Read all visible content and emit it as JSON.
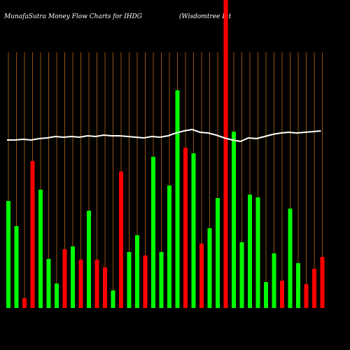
{
  "chart_data": {
    "type": "bar",
    "title": "MunafaSutra  Money Flow  Charts for IHDG",
    "subtitle": "(Wisdomtree  Int",
    "categories": [
      null,
      null,
      null,
      null,
      null,
      null,
      null,
      null,
      null,
      null,
      null,
      null,
      null,
      null,
      null,
      null,
      null,
      null,
      null,
      null,
      null,
      null,
      null,
      null,
      null,
      null,
      null,
      null,
      null,
      null,
      null,
      null,
      null,
      null,
      null,
      null,
      null,
      null,
      null,
      null
    ],
    "ylim": [
      0,
      440
    ],
    "series": [
      {
        "name": "money flow",
        "type": "bar",
        "colors": [
          "#00ff00",
          "#00ff00",
          "#ff0000",
          "#ff0000",
          "#00ff00",
          "#00ff00",
          "#00ff00",
          "#ff0000",
          "#00ff00",
          "#ff0000",
          "#00ff00",
          "#ff0000",
          "#ff0000",
          "#00ff00",
          "#ff0000",
          "#00ff00",
          "#00ff00",
          "#ff0000",
          "#00ff00",
          "#00ff00",
          "#00ff00",
          "#00ff00",
          "#ff0000",
          "#00ff00",
          "#ff0000",
          "#00ff00",
          "#00ff00",
          "#ff0000",
          "#00ff00",
          "#00ff00",
          "#00ff00",
          "#00ff00",
          "#00ff00",
          "#00ff00",
          "#ff0000",
          "#00ff00",
          "#00ff00",
          "#ff0000",
          "#ff0000",
          "#ff0000"
        ],
        "values": [
          153,
          117,
          14,
          210,
          169,
          70,
          35,
          84,
          88,
          69,
          139,
          69,
          58,
          25,
          195,
          80,
          104,
          75,
          216,
          80,
          175,
          311,
          229,
          221,
          92,
          114,
          157,
          440,
          252,
          94,
          162,
          158,
          37,
          78,
          39,
          142,
          64,
          34,
          56,
          73
        ]
      },
      {
        "name": "trend",
        "type": "line",
        "color": "#ffffff",
        "values": [
          240,
          240,
          241,
          240,
          242,
          243,
          245,
          244,
          245,
          244,
          246,
          245,
          247,
          246,
          246,
          245,
          244,
          243,
          245,
          244,
          246,
          250,
          253,
          255,
          251,
          250,
          247,
          243,
          240,
          238,
          243,
          242,
          245,
          248,
          250,
          251,
          250,
          251,
          252,
          253
        ]
      }
    ]
  }
}
